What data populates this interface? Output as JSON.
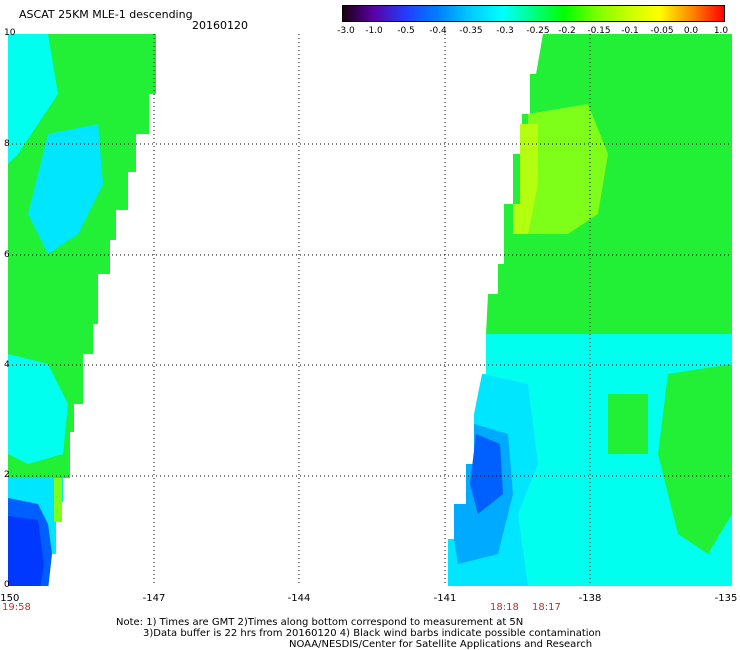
{
  "header": {
    "title": "ASCAT 25KM MLE-1 descending",
    "date": "20160120"
  },
  "colorbar": {
    "labels": [
      "-3.0",
      "-1.0",
      "-0.5",
      "-0.4",
      "-0.35",
      "-0.3",
      "-0.25",
      "-0.2",
      "-0.15",
      "-0.1",
      "-0.05",
      "0.0",
      "1.0"
    ],
    "colors": [
      "#1a0010",
      "#5a00a8",
      "#2040ff",
      "#0080ff",
      "#00c8ff",
      "#00ffff",
      "#00ff80",
      "#00ff00",
      "#80ff00",
      "#c8ff00",
      "#ffff00",
      "#ff8000",
      "#ff0000"
    ]
  },
  "axes": {
    "x_ticks": [
      "-150",
      "-147",
      "-144",
      "-141",
      "-138",
      "-135"
    ],
    "y_ticks": [
      "0",
      "2",
      "4",
      "6",
      "8",
      "10"
    ]
  },
  "pass_times": [
    "19:58",
    "18:18",
    "18:17"
  ],
  "footer": {
    "note_line1": "Note: 1) Times are GMT 2)Times along bottom correspond to measurement at 5N",
    "note_line2": "3)Data buffer is 22 hrs from 20160120 4) Black wind barbs indicate possible contamination",
    "credit": "NOAA/NESDIS/Center for Satellite Applications and Research"
  },
  "map": {
    "colors": {
      "green": "#22f036",
      "light_green": "#7dff1a",
      "yellow_green": "#b4ff10",
      "cyan": "#00ffee",
      "aqua": "#00e6ff",
      "sky_blue": "#00aaff",
      "blue": "#0060ff",
      "deep_blue": "#0038ff",
      "yellow": "#e8ff00"
    }
  }
}
